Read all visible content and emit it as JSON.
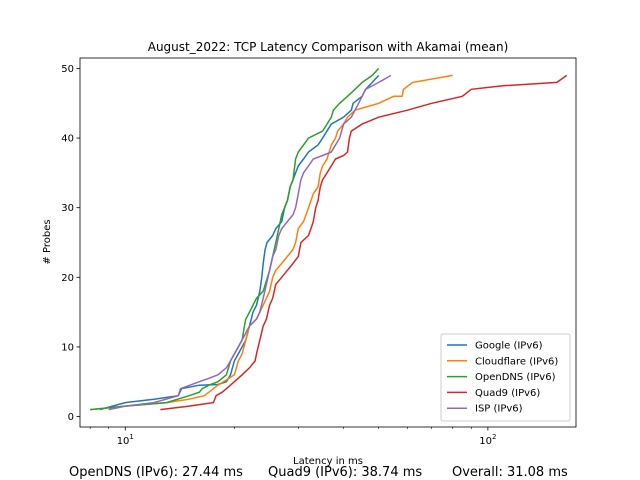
{
  "footer": {
    "opendns": "OpenDNS (IPv6): 27.44 ms",
    "quad9": "Quad9 (IPv6): 38.74 ms",
    "overall": "Overall: 31.08 ms"
  },
  "chart_data": {
    "type": "line",
    "title": "August_2022: TCP Latency Comparison with Akamai (mean)",
    "xlabel": "Latency in ms",
    "ylabel": "# Probes",
    "xscale": "log",
    "xlim": [
      7.5,
      175
    ],
    "ylim": [
      -1.5,
      51.5
    ],
    "xticks": [
      {
        "value": 10,
        "base": "10",
        "exp": "1"
      },
      {
        "value": 100,
        "base": "10",
        "exp": "2"
      }
    ],
    "yticks": [
      0,
      10,
      20,
      30,
      40,
      50
    ],
    "grid": false,
    "legend_position": "lower right",
    "series": [
      {
        "name": "Google (IPv6)",
        "color": "#1f77b4",
        "points": [
          [
            8.5,
            1
          ],
          [
            10,
            2
          ],
          [
            12,
            2.5
          ],
          [
            14,
            3
          ],
          [
            14.3,
            4
          ],
          [
            16,
            4.5
          ],
          [
            18,
            4.6
          ],
          [
            19,
            5
          ],
          [
            19.5,
            6
          ],
          [
            20,
            8
          ],
          [
            20.5,
            9
          ],
          [
            21,
            10
          ],
          [
            21.5,
            11
          ],
          [
            22,
            13
          ],
          [
            22.5,
            15
          ],
          [
            23,
            16
          ],
          [
            23.5,
            18
          ],
          [
            23.8,
            20
          ],
          [
            24,
            22
          ],
          [
            24.3,
            24
          ],
          [
            24.6,
            25
          ],
          [
            25.5,
            26
          ],
          [
            26,
            27
          ],
          [
            27,
            28
          ],
          [
            27.5,
            30
          ],
          [
            28,
            31
          ],
          [
            28.5,
            33
          ],
          [
            29,
            34
          ],
          [
            29.5,
            35
          ],
          [
            30,
            36
          ],
          [
            31,
            37
          ],
          [
            32,
            38
          ],
          [
            34,
            39
          ],
          [
            35,
            40
          ],
          [
            37,
            42
          ],
          [
            40,
            43
          ],
          [
            42,
            44
          ],
          [
            42.5,
            45
          ],
          [
            45,
            46
          ],
          [
            46,
            47
          ],
          [
            48,
            48
          ],
          [
            50,
            49
          ]
        ]
      },
      {
        "name": "Cloudflare (IPv6)",
        "color": "#ff7f0e",
        "points": [
          [
            8,
            1
          ],
          [
            10,
            1.5
          ],
          [
            13,
            2
          ],
          [
            15,
            2.5
          ],
          [
            16.5,
            3
          ],
          [
            17,
            3.5
          ],
          [
            17.5,
            4
          ],
          [
            18,
            4.5
          ],
          [
            20,
            6
          ],
          [
            20.5,
            8
          ],
          [
            21,
            9
          ],
          [
            21.5,
            11
          ],
          [
            22,
            13
          ],
          [
            23,
            14
          ],
          [
            24,
            16
          ],
          [
            25,
            18
          ],
          [
            25.5,
            20
          ],
          [
            26,
            21
          ],
          [
            27,
            22
          ],
          [
            28,
            23
          ],
          [
            29,
            24
          ],
          [
            29.5,
            25
          ],
          [
            30,
            27
          ],
          [
            31,
            28
          ],
          [
            32,
            30
          ],
          [
            33,
            32
          ],
          [
            34,
            33
          ],
          [
            34.5,
            35
          ],
          [
            35,
            36
          ],
          [
            36,
            37
          ],
          [
            37,
            39
          ],
          [
            38,
            40
          ],
          [
            38.5,
            41
          ],
          [
            40,
            42
          ],
          [
            41,
            43
          ],
          [
            43,
            44
          ],
          [
            50,
            45
          ],
          [
            55,
            46
          ],
          [
            58,
            46
          ],
          [
            58.5,
            47
          ],
          [
            62,
            48
          ],
          [
            80,
            49
          ]
        ]
      },
      {
        "name": "OpenDNS (IPv6)",
        "color": "#2ca02c",
        "points": [
          [
            8,
            1
          ],
          [
            10,
            1.5
          ],
          [
            13,
            2
          ],
          [
            15,
            3
          ],
          [
            16,
            3.5
          ],
          [
            16.3,
            4
          ],
          [
            17,
            4.5
          ],
          [
            18,
            5
          ],
          [
            19,
            6
          ],
          [
            19.5,
            8
          ],
          [
            20,
            9
          ],
          [
            20.5,
            10
          ],
          [
            21,
            11
          ],
          [
            21.3,
            13
          ],
          [
            21.5,
            14
          ],
          [
            22,
            15
          ],
          [
            22.5,
            16
          ],
          [
            23,
            17
          ],
          [
            24,
            18
          ],
          [
            25,
            21
          ],
          [
            25.5,
            23
          ],
          [
            26,
            25
          ],
          [
            26.5,
            27
          ],
          [
            27,
            29
          ],
          [
            28,
            31
          ],
          [
            28.5,
            33
          ],
          [
            29,
            34
          ],
          [
            29.5,
            37
          ],
          [
            30,
            38
          ],
          [
            31,
            39
          ],
          [
            32,
            40
          ],
          [
            35,
            41
          ],
          [
            36,
            42
          ],
          [
            37,
            43
          ],
          [
            37.5,
            44
          ],
          [
            39,
            45
          ],
          [
            41,
            46
          ],
          [
            43,
            47
          ],
          [
            45,
            48
          ],
          [
            48,
            49
          ],
          [
            50,
            50
          ]
        ]
      },
      {
        "name": "Quad9 (IPv6)",
        "color": "#d62728",
        "points": [
          [
            12.5,
            1
          ],
          [
            15,
            1.5
          ],
          [
            17.5,
            2
          ],
          [
            17.8,
            3
          ],
          [
            18.5,
            3.5
          ],
          [
            19,
            4
          ],
          [
            20,
            5
          ],
          [
            21,
            6
          ],
          [
            22,
            7
          ],
          [
            22.8,
            8
          ],
          [
            23,
            9
          ],
          [
            24,
            13
          ],
          [
            24.5,
            14
          ],
          [
            25,
            16
          ],
          [
            25.5,
            17
          ],
          [
            26,
            19
          ],
          [
            27,
            20
          ],
          [
            28,
            21
          ],
          [
            29,
            22
          ],
          [
            30,
            23
          ],
          [
            30.5,
            25
          ],
          [
            32,
            26
          ],
          [
            32.5,
            27
          ],
          [
            33,
            28
          ],
          [
            33.5,
            30
          ],
          [
            34,
            31
          ],
          [
            34.5,
            33
          ],
          [
            35,
            34
          ],
          [
            36,
            35
          ],
          [
            37,
            36
          ],
          [
            38,
            37
          ],
          [
            40,
            37.5
          ],
          [
            41,
            38
          ],
          [
            41.5,
            40
          ],
          [
            42,
            41
          ],
          [
            45,
            42
          ],
          [
            50,
            43
          ],
          [
            60,
            44
          ],
          [
            70,
            45
          ],
          [
            85,
            46
          ],
          [
            90,
            47
          ],
          [
            110,
            47.5
          ],
          [
            155,
            48
          ],
          [
            165,
            49
          ]
        ]
      },
      {
        "name": "ISP (IPv6)",
        "color": "#9467bd",
        "points": [
          [
            9,
            1
          ],
          [
            10,
            1.5
          ],
          [
            12,
            2
          ],
          [
            14,
            3
          ],
          [
            14.2,
            4
          ],
          [
            16,
            5
          ],
          [
            17,
            5.5
          ],
          [
            18,
            6
          ],
          [
            19,
            7
          ],
          [
            19.5,
            8
          ],
          [
            20,
            9
          ],
          [
            20.5,
            10
          ],
          [
            21,
            11
          ],
          [
            21.5,
            12
          ],
          [
            22,
            13
          ],
          [
            23,
            14
          ],
          [
            23.5,
            15
          ],
          [
            24,
            17
          ],
          [
            24.5,
            19
          ],
          [
            25,
            21
          ],
          [
            25.5,
            23
          ],
          [
            26,
            24
          ],
          [
            26.5,
            26
          ],
          [
            27,
            27
          ],
          [
            28,
            28
          ],
          [
            29,
            29
          ],
          [
            29.5,
            30
          ],
          [
            30,
            32
          ],
          [
            30.5,
            34
          ],
          [
            31,
            35
          ],
          [
            32,
            36
          ],
          [
            33,
            37
          ],
          [
            35,
            37.5
          ],
          [
            37,
            38
          ],
          [
            38,
            39
          ],
          [
            39,
            40
          ],
          [
            40,
            42
          ],
          [
            42,
            43
          ],
          [
            43,
            44
          ],
          [
            44,
            45
          ],
          [
            45,
            46
          ],
          [
            46,
            47
          ],
          [
            50,
            48
          ],
          [
            54,
            49
          ]
        ]
      }
    ]
  }
}
